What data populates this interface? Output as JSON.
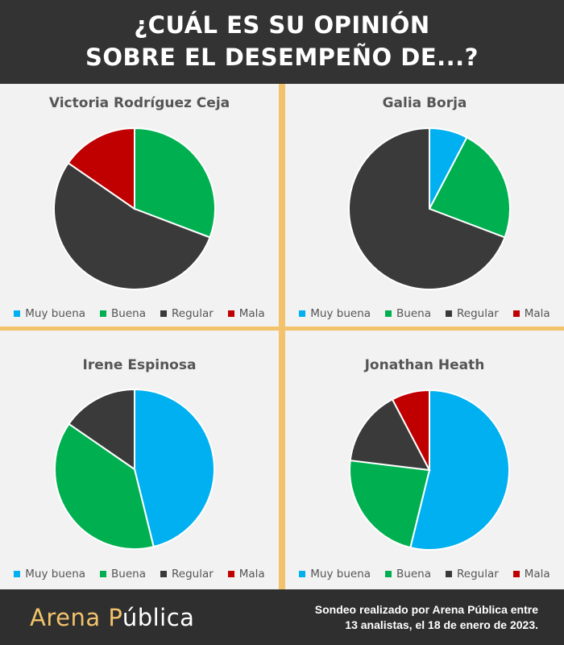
{
  "header": {
    "title_line1": "¿CUÁL ES SU OPINIÓN",
    "title_line2": "SOBRE EL DESEMPEÑO DE...?"
  },
  "legend": {
    "labels": [
      "Muy buena",
      "Buena",
      "Regular",
      "Mala"
    ],
    "colors": [
      "#00b0f0",
      "#00b050",
      "#3a3a3a",
      "#c00000"
    ]
  },
  "chart_data": [
    {
      "type": "pie",
      "title": "Victoria Rodríguez Ceja",
      "categories": [
        "Muy buena",
        "Buena",
        "Regular",
        "Mala"
      ],
      "values": [
        0,
        4,
        7,
        2
      ]
    },
    {
      "type": "pie",
      "title": "Galia Borja",
      "categories": [
        "Muy buena",
        "Buena",
        "Regular",
        "Mala"
      ],
      "values": [
        1,
        3,
        9,
        0
      ]
    },
    {
      "type": "pie",
      "title": "Irene Espinosa",
      "categories": [
        "Muy buena",
        "Buena",
        "Regular",
        "Mala"
      ],
      "values": [
        6,
        5,
        2,
        0
      ]
    },
    {
      "type": "pie",
      "title": "Jonathan Heath",
      "categories": [
        "Muy buena",
        "Buena",
        "Regular",
        "Mala"
      ],
      "values": [
        7,
        3,
        2,
        1
      ]
    }
  ],
  "footer": {
    "logo_part1": "Arena ",
    "logo_part2": "P",
    "logo_part3": "ública",
    "note_line1": "Sondeo realizado por Arena Pública entre",
    "note_line2": "13 analistas, el 18 de enero de 2023."
  }
}
